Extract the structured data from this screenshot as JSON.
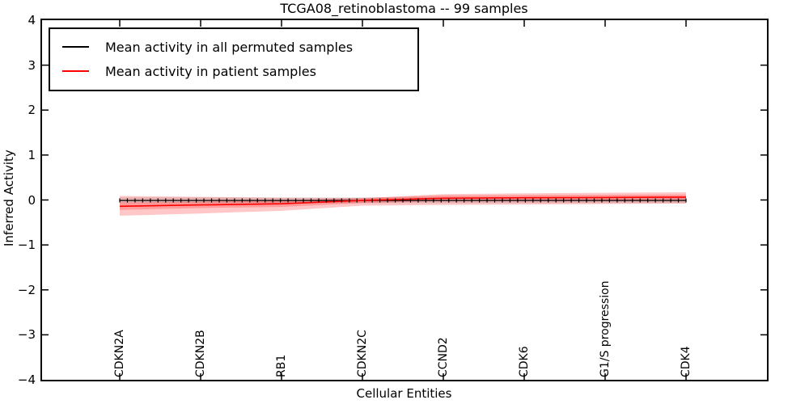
{
  "title": "TCGA08_retinoblastoma -- 99 samples",
  "axes": {
    "xlabel": "Cellular Entities",
    "ylabel": "Inferred Activity",
    "ytick_labels": [
      "4",
      "3",
      "2",
      "1",
      "0",
      "−1",
      "−2",
      "−3",
      "−4"
    ],
    "ytick_values": [
      4,
      3,
      2,
      1,
      0,
      -1,
      -2,
      -3,
      -4
    ]
  },
  "legend": {
    "entries": [
      {
        "label": "Mean activity in all permuted samples",
        "color": "#000000"
      },
      {
        "label": "Mean activity in patient samples",
        "color": "#ff0000"
      }
    ]
  },
  "colors": {
    "permuted_line": "#000000",
    "patient_line": "#ff0000",
    "patient_band": "rgba(255,0,0,0.22)",
    "permuted_band": "rgba(0,0,0,0.13)",
    "spine": "#000000"
  },
  "chart_data": {
    "type": "line",
    "title": "TCGA08_retinoblastoma -- 99 samples",
    "xlabel": "Cellular Entities",
    "ylabel": "Inferred Activity",
    "ylim": [
      -4,
      4
    ],
    "yticks": [
      -4,
      -3,
      -2,
      -1,
      0,
      1,
      2,
      3,
      4
    ],
    "grid": false,
    "legend_position": "upper left",
    "categories": [
      "CDKN2A",
      "CDKN2B",
      "RB1",
      "CDKN2C",
      "CCND2",
      "CDK6",
      "G1/S progression",
      "CDK4"
    ],
    "marker_count": 75,
    "marker_style": "vertical-tick",
    "series": [
      {
        "name": "Mean activity in all permuted samples",
        "color": "#000000",
        "values": [
          -0.01,
          -0.01,
          -0.01,
          -0.01,
          -0.01,
          -0.01,
          -0.01,
          -0.01
        ],
        "band_upper": [
          0.055,
          0.055,
          0.055,
          0.055,
          0.055,
          0.055,
          0.055,
          0.055
        ],
        "band_lower": [
          -0.07,
          -0.07,
          -0.07,
          -0.07,
          -0.07,
          -0.07,
          -0.07,
          -0.07
        ]
      },
      {
        "name": "Mean activity in patient samples",
        "color": "#ff0000",
        "values": [
          -0.14,
          -0.11,
          -0.085,
          -0.01,
          0.04,
          0.05,
          0.055,
          0.065
        ],
        "band_upper": [
          0.09,
          0.07,
          0.05,
          0.04,
          0.13,
          0.15,
          0.16,
          0.17
        ],
        "band_lower": [
          -0.35,
          -0.3,
          -0.24,
          -0.125,
          -0.11,
          -0.1,
          -0.09,
          -0.08
        ],
        "inner_band_upper": [
          -0.06,
          -0.04,
          -0.015,
          0.045,
          0.1,
          0.11,
          0.115,
          0.12
        ],
        "inner_band_lower": [
          -0.22,
          -0.18,
          -0.155,
          -0.065,
          -0.02,
          -0.01,
          -0.005,
          0.01
        ]
      }
    ]
  }
}
